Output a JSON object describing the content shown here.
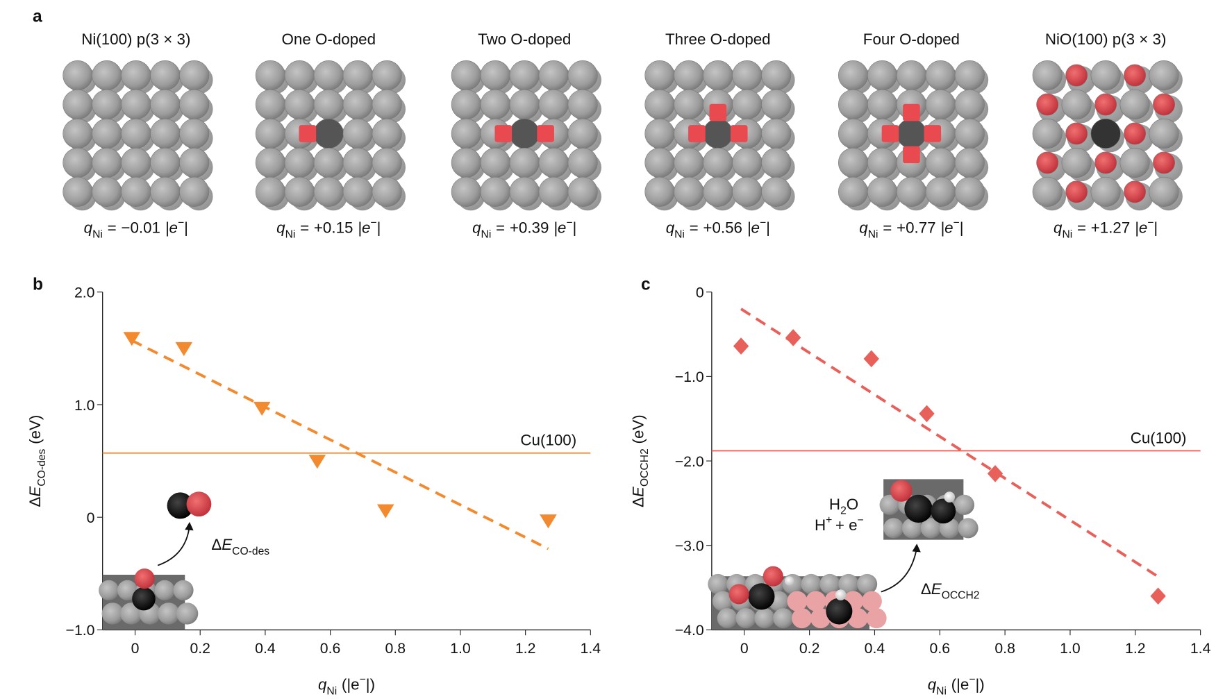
{
  "panel_labels": [
    "a",
    "b",
    "c"
  ],
  "charge_label": {
    "symbol": "q",
    "sub": "Ni",
    "equals": "=",
    "unit_open": "|e",
    "unit_sup": "−",
    "unit_close": "|"
  },
  "structures": [
    {
      "title": "Ni(100) p(3 × 3)",
      "charge": "−0.01"
    },
    {
      "title": "One O-doped",
      "charge": "+0.15"
    },
    {
      "title": "Two O-doped",
      "charge": "+0.39"
    },
    {
      "title": "Three O-doped",
      "charge": "+0.56"
    },
    {
      "title": "Four O-doped",
      "charge": "+0.77"
    },
    {
      "title": "NiO(100) p(3 × 3)",
      "charge": "+1.27"
    }
  ],
  "chart_data": [
    {
      "type": "scatter",
      "marker": "triangle-down",
      "color": "#f28b30",
      "x": [
        -0.01,
        0.15,
        0.39,
        0.56,
        0.77,
        1.27
      ],
      "values": [
        1.59,
        1.5,
        0.97,
        0.5,
        0.06,
        -0.03
      ],
      "trend_line": {
        "x": [
          -0.01,
          1.27
        ],
        "values": [
          1.57,
          -0.28
        ]
      },
      "reference_line": {
        "label": "Cu(100)",
        "value": 0.57
      },
      "xlim": [
        -0.1,
        1.4
      ],
      "ylim": [
        -1.0,
        2.0
      ],
      "xticks": [
        0,
        0.2,
        0.4,
        0.6,
        0.8,
        {
          "value": 1.0,
          "label": "1.0"
        },
        1.2,
        1.4
      ],
      "yticks": [
        {
          "value": -1.0,
          "label": "−1.0"
        },
        0,
        {
          "value": 1.0,
          "label": "1.0"
        },
        {
          "value": 2.0,
          "label": "2.0"
        }
      ],
      "x_label": {
        "symbol": "q",
        "sub": "Ni",
        "unit": "(|e",
        "sup": "−",
        "close": "|)"
      },
      "y_label": {
        "delta": "Δ",
        "symbol": "E",
        "sub": "CO-des",
        "unit": "(eV)"
      },
      "annotation": {
        "delta": "Δ",
        "symbol": "E",
        "sub": "CO-des"
      }
    },
    {
      "type": "scatter",
      "marker": "diamond",
      "color": "#e8605a",
      "x": [
        -0.01,
        0.15,
        0.39,
        0.56,
        0.77,
        1.27
      ],
      "values": [
        -0.64,
        -0.54,
        -0.79,
        -1.44,
        -2.15,
        -3.6
      ],
      "trend_line": {
        "x": [
          -0.01,
          1.27
        ],
        "values": [
          -0.2,
          -3.37
        ]
      },
      "reference_line": {
        "label": "Cu(100)",
        "value": -1.88
      },
      "xlim": [
        -0.1,
        1.4
      ],
      "ylim": [
        -4.0,
        0
      ],
      "xticks": [
        0,
        0.2,
        0.4,
        0.6,
        0.8,
        {
          "value": 1.0,
          "label": "1.0"
        },
        1.2,
        1.4
      ],
      "yticks": [
        {
          "value": -4.0,
          "label": "−4.0"
        },
        {
          "value": -3.0,
          "label": "−3.0"
        },
        {
          "value": -2.0,
          "label": "−2.0"
        },
        {
          "value": -1.0,
          "label": "−1.0"
        },
        0
      ],
      "x_label": {
        "symbol": "q",
        "sub": "Ni",
        "unit": "(|e",
        "sup": "−",
        "close": "|)"
      },
      "y_label": {
        "delta": "Δ",
        "symbol": "E",
        "sub": "OCCH2",
        "unit": "(eV)"
      },
      "annotation": {
        "delta": "Δ",
        "symbol": "E",
        "sub": "OCCH2"
      },
      "reagents": {
        "water": [
          "H",
          "2",
          "O"
        ],
        "proton": [
          "H",
          "+",
          "+ e",
          "−"
        ]
      }
    }
  ]
}
